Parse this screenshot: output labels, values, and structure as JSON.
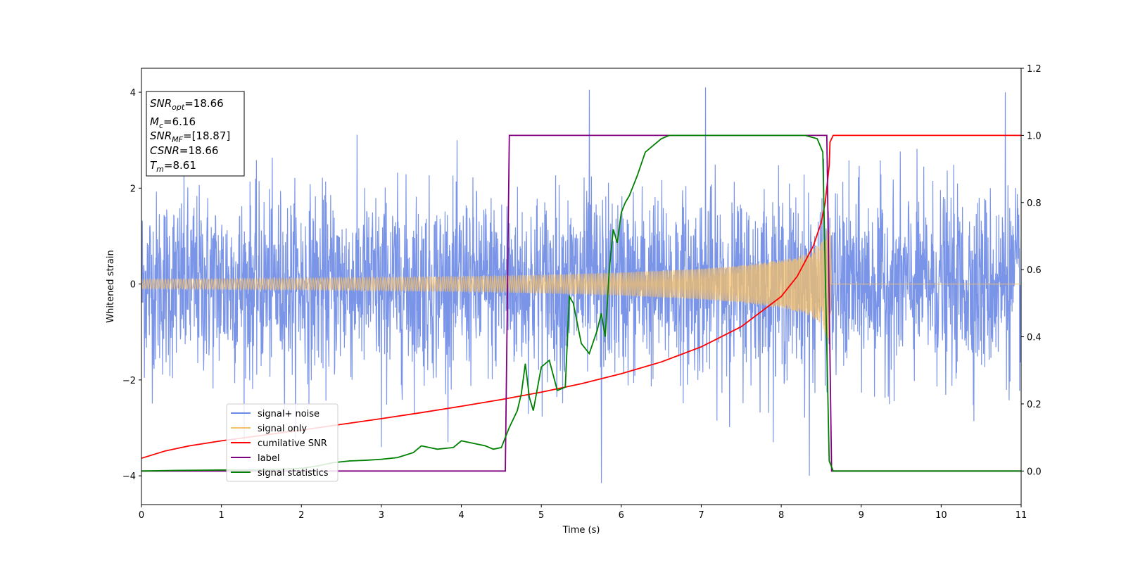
{
  "chart_data": {
    "type": "line",
    "title": "",
    "xlabel": "Time (s)",
    "ylabel": "Whitened strain",
    "y2label": "",
    "xlim": [
      0,
      11
    ],
    "ylim": [
      -4.6,
      4.5
    ],
    "y2lim": [
      -0.1,
      1.2
    ],
    "xticks": [
      0,
      1,
      2,
      3,
      4,
      5,
      6,
      7,
      8,
      9,
      10,
      11
    ],
    "yticks": [
      -4,
      -2,
      0,
      2,
      4
    ],
    "y2ticks": [
      0.0,
      0.2,
      0.4,
      0.6,
      0.8,
      1.0,
      1.2
    ],
    "xtick_labels": [
      "0",
      "1",
      "2",
      "3",
      "4",
      "5",
      "6",
      "7",
      "8",
      "9",
      "10",
      "11"
    ],
    "ytick_labels": [
      "−4",
      "−2",
      "0",
      "2",
      "4"
    ],
    "y2tick_labels": [
      "0.0",
      "0.2",
      "0.4",
      "0.6",
      "0.8",
      "1.0",
      "1.2"
    ],
    "grid": false,
    "legend_position": "lower-left",
    "series": [
      {
        "name": "signal+ noise",
        "axis": "left",
        "color": "#6b88e6",
        "kind": "noise-band",
        "x_range": [
          0,
          11
        ],
        "typical_amplitude": 2.2,
        "peak_amplitude": 4.1,
        "peaks": [
          [
            5.6,
            4.05
          ],
          [
            7.05,
            4.1
          ],
          [
            10.8,
            4.0
          ],
          [
            5.75,
            -4.15
          ],
          [
            8.35,
            -4.0
          ],
          [
            3.0,
            -3.4
          ]
        ]
      },
      {
        "name": "signal only",
        "axis": "left",
        "color": "#f5c06a",
        "kind": "chirp-envelope",
        "envelope": [
          [
            0,
            0.1
          ],
          [
            1,
            0.11
          ],
          [
            2,
            0.12
          ],
          [
            3,
            0.14
          ],
          [
            4,
            0.16
          ],
          [
            5,
            0.19
          ],
          [
            6,
            0.24
          ],
          [
            7,
            0.32
          ],
          [
            7.5,
            0.39
          ],
          [
            8,
            0.5
          ],
          [
            8.3,
            0.62
          ],
          [
            8.5,
            0.85
          ],
          [
            8.58,
            1.15
          ],
          [
            8.61,
            1.25
          ],
          [
            8.63,
            0.0
          ],
          [
            11,
            0.0
          ]
        ]
      },
      {
        "name": "cumilative SNR",
        "axis": "right",
        "color": "#ff0000",
        "x": [
          0,
          0.3,
          0.6,
          1,
          1.5,
          2,
          2.5,
          3,
          3.5,
          4,
          4.5,
          5,
          5.5,
          6,
          6.5,
          7,
          7.5,
          8,
          8.2,
          8.4,
          8.5,
          8.55,
          8.6,
          8.61,
          8.65,
          11
        ],
        "y": [
          0.038,
          0.06,
          0.075,
          0.09,
          0.106,
          0.122,
          0.139,
          0.156,
          0.174,
          0.193,
          0.213,
          0.235,
          0.26,
          0.29,
          0.325,
          0.37,
          0.43,
          0.52,
          0.58,
          0.67,
          0.74,
          0.8,
          0.91,
          0.98,
          1.0,
          1.0
        ]
      },
      {
        "name": "label",
        "axis": "right",
        "color": "#800080",
        "x": [
          0,
          4.55,
          4.6,
          8.57,
          8.63,
          11
        ],
        "y": [
          0.0,
          0.0,
          1.0,
          1.0,
          0.0,
          0.0
        ]
      },
      {
        "name": "signal statistics",
        "axis": "right",
        "color": "#008000",
        "x": [
          0,
          0.5,
          1,
          1.5,
          2,
          2.2,
          2.4,
          2.6,
          2.8,
          3.0,
          3.2,
          3.4,
          3.5,
          3.6,
          3.7,
          3.9,
          4.0,
          4.1,
          4.2,
          4.3,
          4.4,
          4.5,
          4.6,
          4.7,
          4.75,
          4.8,
          4.85,
          4.9,
          5.0,
          5.1,
          5.2,
          5.3,
          5.35,
          5.4,
          5.45,
          5.5,
          5.6,
          5.7,
          5.75,
          5.8,
          5.85,
          5.9,
          5.95,
          6.0,
          6.05,
          6.1,
          6.2,
          6.3,
          6.4,
          6.5,
          6.6,
          7.0,
          7.5,
          8.0,
          8.3,
          8.45,
          8.52,
          8.55,
          8.6,
          8.65,
          9,
          11
        ],
        "y": [
          0.0,
          0.002,
          0.003,
          0.003,
          0.008,
          0.015,
          0.025,
          0.03,
          0.032,
          0.035,
          0.04,
          0.055,
          0.075,
          0.07,
          0.065,
          0.07,
          0.09,
          0.085,
          0.08,
          0.075,
          0.065,
          0.07,
          0.13,
          0.18,
          0.23,
          0.32,
          0.22,
          0.18,
          0.31,
          0.33,
          0.24,
          0.25,
          0.52,
          0.5,
          0.44,
          0.38,
          0.35,
          0.42,
          0.47,
          0.4,
          0.6,
          0.72,
          0.68,
          0.77,
          0.8,
          0.82,
          0.88,
          0.95,
          0.97,
          0.99,
          1.0,
          1.0,
          1.0,
          1.0,
          1.0,
          0.99,
          0.95,
          0.6,
          0.03,
          0.0,
          0.0,
          0.0
        ]
      }
    ]
  },
  "annotation": {
    "lines": [
      {
        "base": "SNR",
        "sub": "opt",
        "value": "=18.66"
      },
      {
        "base": "M",
        "sub": "c",
        "value": "=6.16"
      },
      {
        "base": "SNR",
        "sub": "MF",
        "value": "=[18.87]"
      },
      {
        "base": "CSNR",
        "sub": "",
        "value": "=18.66"
      },
      {
        "base": "T",
        "sub": "m",
        "value": "=8.61"
      }
    ]
  }
}
